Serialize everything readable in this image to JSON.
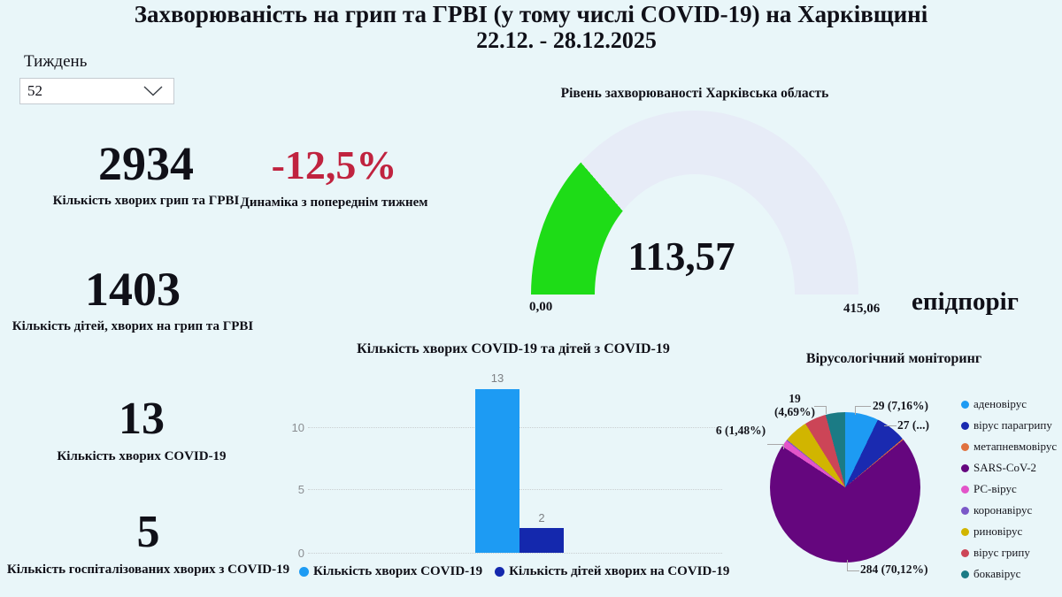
{
  "page": {
    "background": "#e9f6f9"
  },
  "title": {
    "line1": "Захворюваність на грип та ГРВІ (у тому числі COVID-19) на Харківщині",
    "line2": "22.12. - 28.12.2025"
  },
  "week_filter": {
    "label": "Тиждень",
    "value": "52"
  },
  "kpis": [
    {
      "value": "2934",
      "label": "Кількість хворих грип та ГРВІ"
    },
    {
      "value": "1403",
      "label": "Кількість дітей, хворих на грип та ГРВІ"
    },
    {
      "value": "13",
      "label": "Кількість хворих COVID-19"
    },
    {
      "value": "5",
      "label": "Кількість госпіталізованих хворих з COVID-19"
    }
  ],
  "dynamics": {
    "value": "-12,5%",
    "label": "Динаміка з попереднім тижнем",
    "color": "#c0233f"
  },
  "chart_data": [
    {
      "type": "gauge",
      "title": "Рівень захворюваності Харківська область",
      "value": 113.57,
      "value_label": "113,57",
      "min": 0,
      "min_label": "0,00",
      "max": 415.06,
      "max_label": "415,06",
      "target_text": "епідпоріг",
      "fill_color": "#1edc17",
      "track_color": "#e7ecf7"
    },
    {
      "type": "bar",
      "title": "Кількість хворих COVID-19 та дітей з COVID-19",
      "series": [
        {
          "name": "Кількість хворих COVID-19",
          "value": 13,
          "color": "#1d9bf3"
        },
        {
          "name": "Кількість дітей хворих на COVID-19",
          "value": 2,
          "color": "#1428ad"
        }
      ],
      "ylim": [
        0,
        13
      ],
      "yticks": [
        "0",
        "5",
        "10"
      ],
      "grid": true,
      "legend_position": "bottom"
    },
    {
      "type": "pie",
      "title": "Вірусологічний моніторинг",
      "legend_position": "right",
      "slices": [
        {
          "label": "аденовірус",
          "value": 29,
          "color": "#1d9bf3",
          "data_label": "29 (7,16%)"
        },
        {
          "label": "вірус парагрипу",
          "value": 27,
          "color": "#1a2ab0",
          "data_label": "27 (...)"
        },
        {
          "label": "метапневмовірус",
          "value": 1,
          "color": "#e0713f",
          "data_label": ""
        },
        {
          "label": "SARS-CoV-2",
          "value": 284,
          "color": "#65067e",
          "data_label": "284 (70,12%)"
        },
        {
          "label": "РС-вірус",
          "value": 6,
          "color": "#e354c9",
          "data_label": "6 (1,48%)"
        },
        {
          "label": "коронавірус",
          "value": 1,
          "color": "#7b58c8",
          "data_label": ""
        },
        {
          "label": "риновірус",
          "value": 21,
          "color": "#d1b500",
          "data_label": ""
        },
        {
          "label": "вірус грипу",
          "value": 19,
          "color": "#cc4557",
          "data_label": "19 (4,69%)"
        },
        {
          "label": "бокавірус",
          "value": 17,
          "color": "#1b7b85",
          "data_label": ""
        }
      ]
    }
  ]
}
